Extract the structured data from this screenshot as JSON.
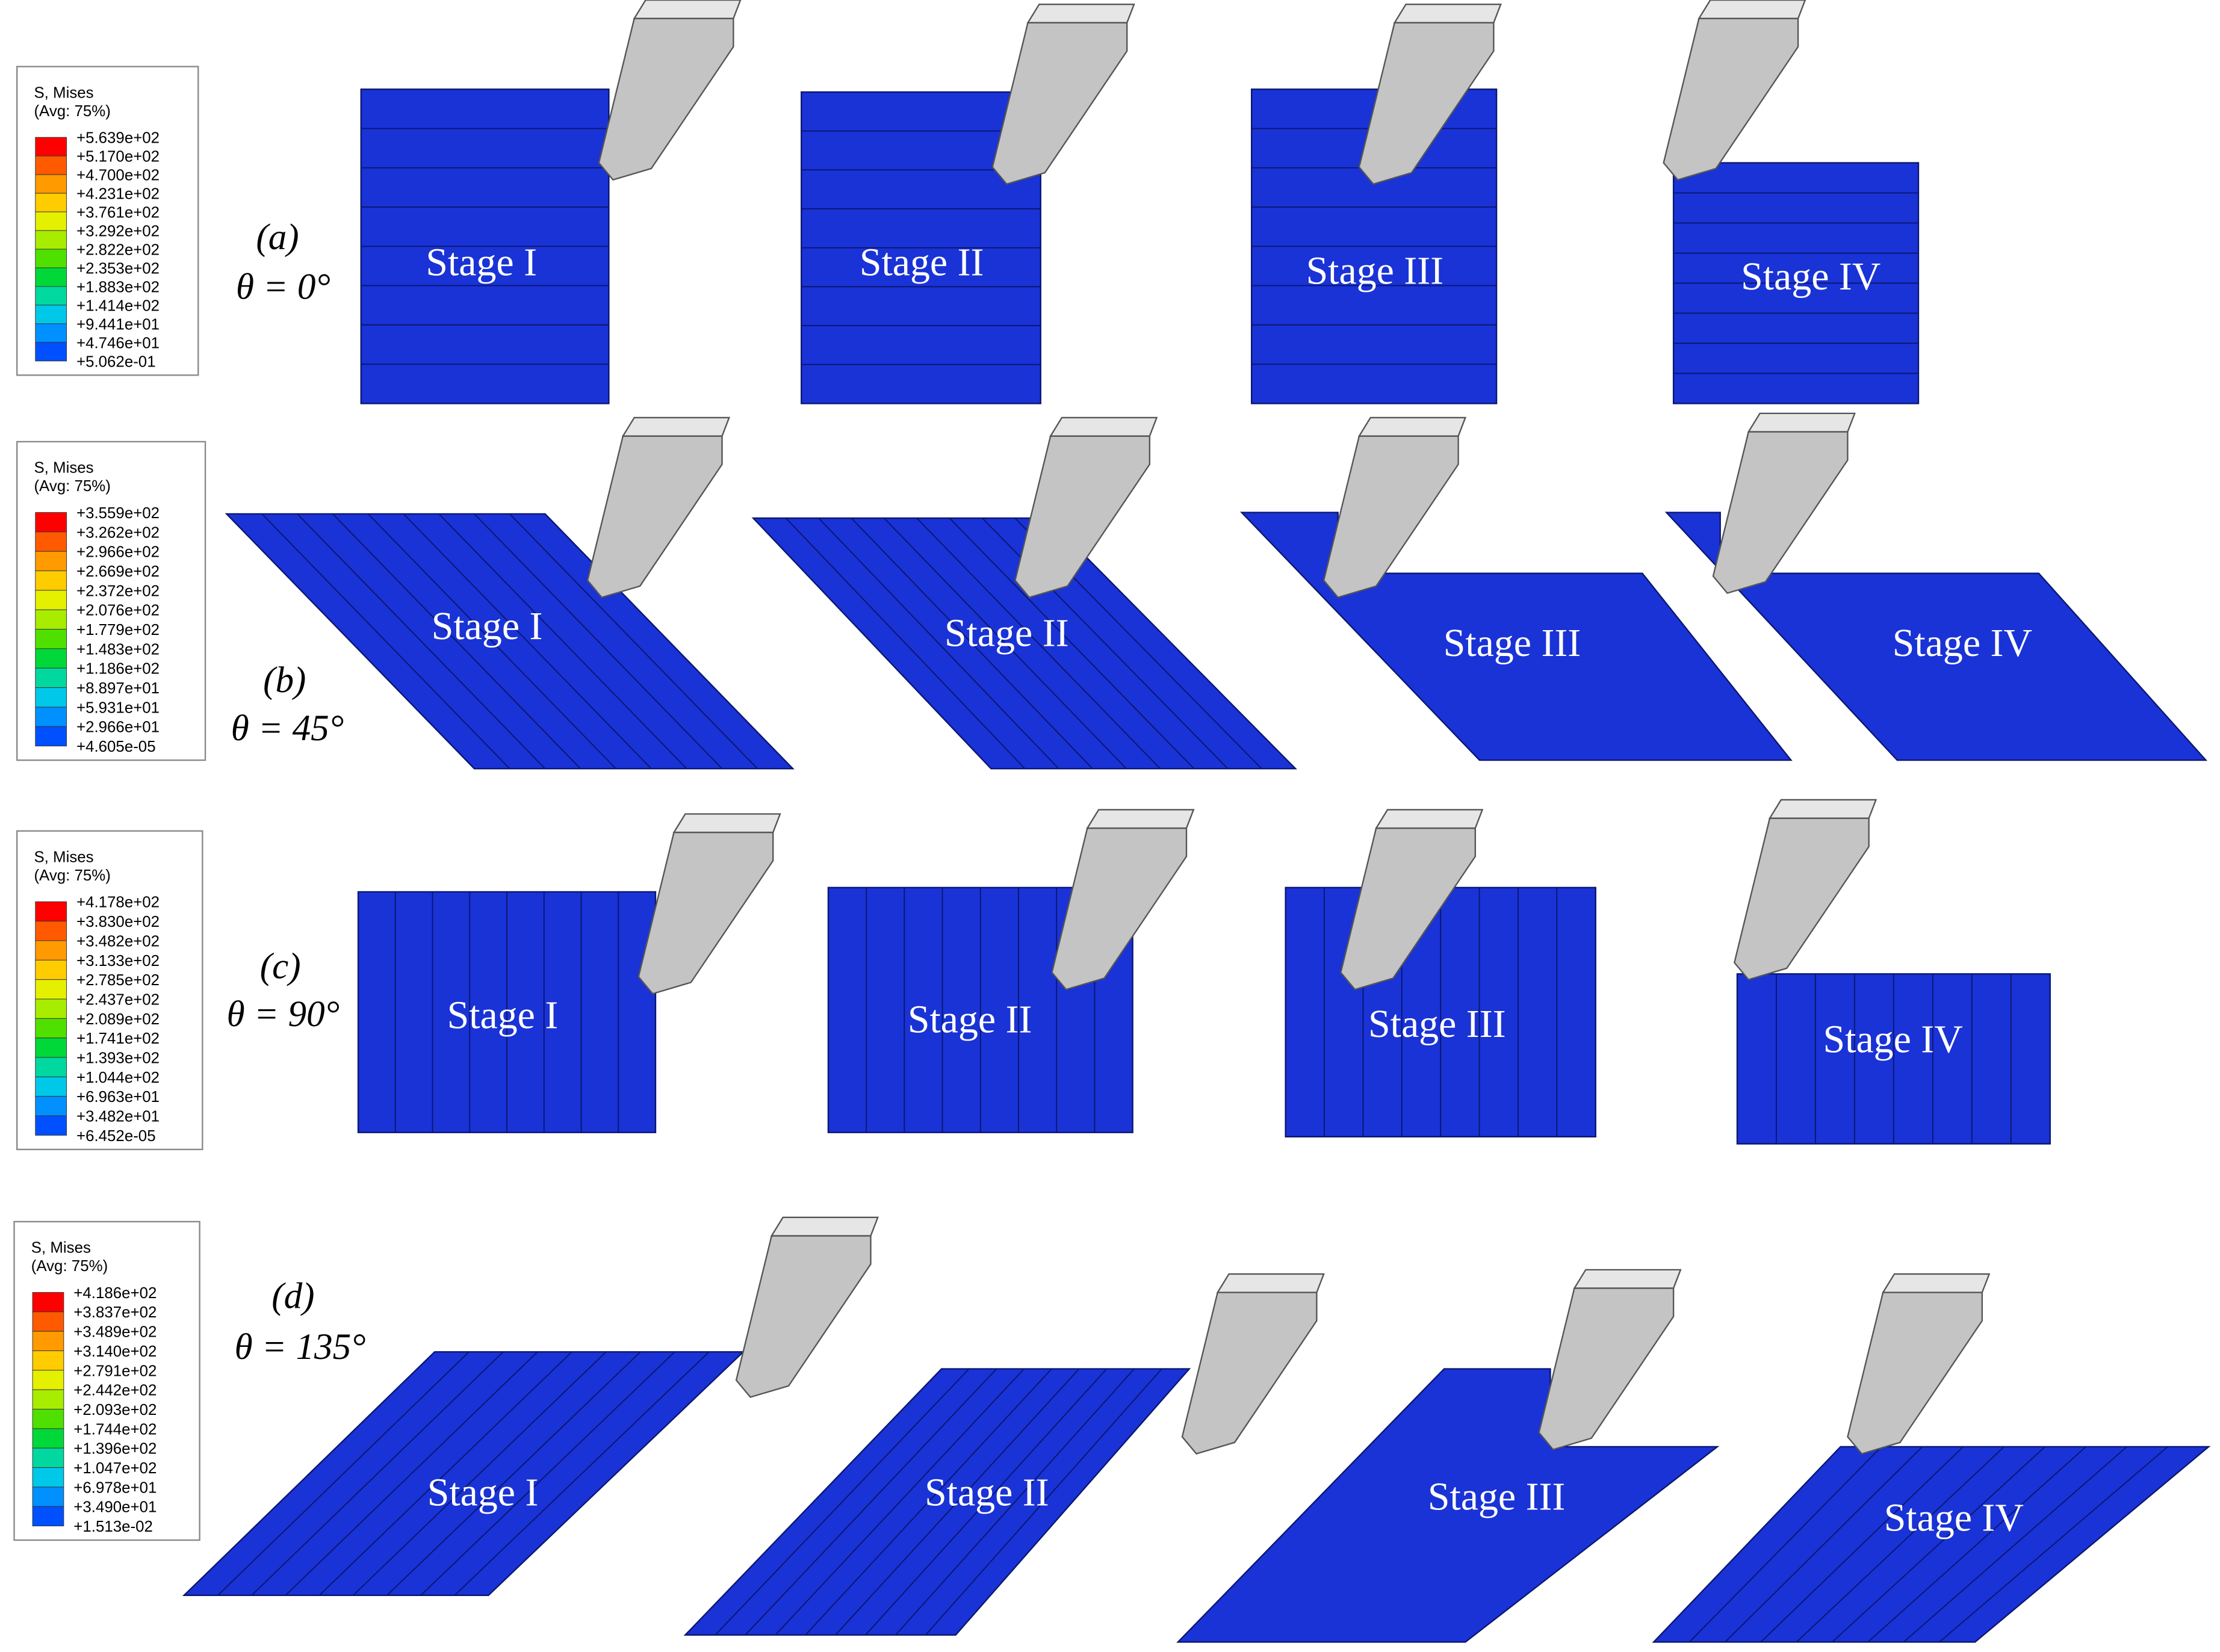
{
  "panels": [
    {
      "label": "(a)",
      "angle": "θ = 0°",
      "legend": {
        "title": "S, Mises",
        "subtitle": "(Avg: 75%)",
        "values": [
          "+5.639e+02",
          "+5.170e+02",
          "+4.700e+02",
          "+4.231e+02",
          "+3.761e+02",
          "+3.292e+02",
          "+2.822e+02",
          "+2.353e+02",
          "+1.883e+02",
          "+1.414e+02",
          "+9.441e+01",
          "+4.746e+01",
          "+5.062e-01"
        ]
      },
      "stages": [
        "Stage I",
        "Stage II",
        "Stage III",
        "Stage IV"
      ]
    },
    {
      "label": "(b)",
      "angle": "θ = 45°",
      "legend": {
        "title": "S, Mises",
        "subtitle": "(Avg: 75%)",
        "values": [
          "+3.559e+02",
          "+3.262e+02",
          "+2.966e+02",
          "+2.669e+02",
          "+2.372e+02",
          "+2.076e+02",
          "+1.779e+02",
          "+1.483e+02",
          "+1.186e+02",
          "+8.897e+01",
          "+5.931e+01",
          "+2.966e+01",
          "+4.605e-05"
        ]
      },
      "stages": [
        "Stage I",
        "Stage II",
        "Stage III",
        "Stage IV"
      ]
    },
    {
      "label": "(c)",
      "angle": "θ = 90°",
      "legend": {
        "title": "S, Mises",
        "subtitle": "(Avg: 75%)",
        "values": [
          "+4.178e+02",
          "+3.830e+02",
          "+3.482e+02",
          "+3.133e+02",
          "+2.785e+02",
          "+2.437e+02",
          "+2.089e+02",
          "+1.741e+02",
          "+1.393e+02",
          "+1.044e+02",
          "+6.963e+01",
          "+3.482e+01",
          "+6.452e-05"
        ]
      },
      "stages": [
        "Stage I",
        "Stage II",
        "Stage III",
        "Stage IV"
      ]
    },
    {
      "label": "(d)",
      "angle": "θ = 135°",
      "legend": {
        "title": "S, Mises",
        "subtitle": "(Avg: 75%)",
        "values": [
          "+4.186e+02",
          "+3.837e+02",
          "+3.489e+02",
          "+3.140e+02",
          "+2.791e+02",
          "+2.442e+02",
          "+2.093e+02",
          "+1.744e+02",
          "+1.396e+02",
          "+1.047e+02",
          "+6.978e+01",
          "+3.490e+01",
          "+1.513e-02"
        ]
      },
      "stages": [
        "Stage I",
        "Stage II",
        "Stage III",
        "Stage IV"
      ]
    }
  ]
}
